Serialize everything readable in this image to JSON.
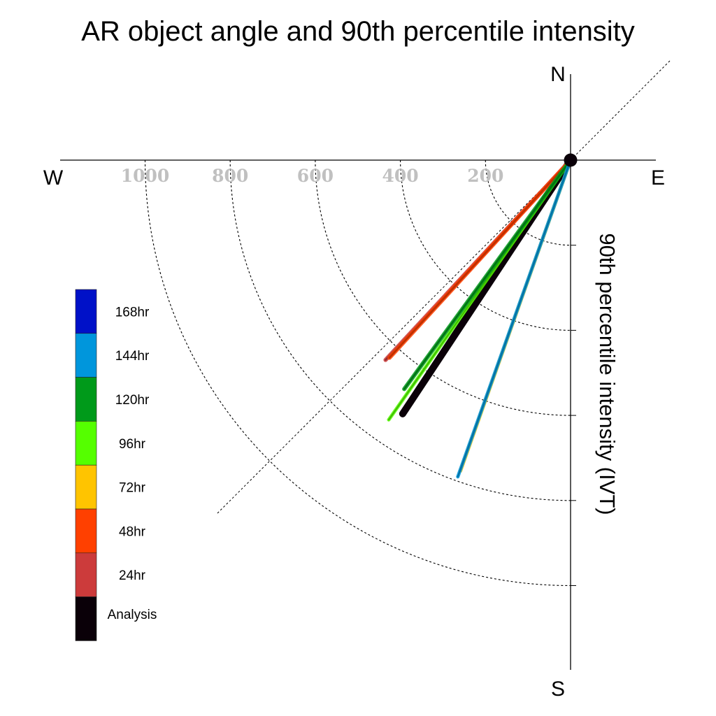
{
  "chart_data": {
    "type": "polar-vector",
    "title": "AR object angle and 90th percentile intensity",
    "ylabel": "90th percentile intensity (IVT)",
    "compass": {
      "north": "N",
      "south": "S",
      "east": "E",
      "west": "W"
    },
    "radial_ticks": [
      200,
      400,
      600,
      800,
      1000
    ],
    "radial_max": 1200,
    "angle_convention": "degrees clockwise from North",
    "grid": true,
    "legend_position": "bottom-left",
    "series": [
      {
        "name": "Analysis",
        "color": "#0a0008",
        "angle_deg": 213.5,
        "magnitude": 715,
        "weight": "heavy"
      },
      {
        "name": "24hr",
        "color": "#cc3b3b",
        "angle_deg": 222.8,
        "magnitude": 640,
        "weight": "medium"
      },
      {
        "name": "48hr",
        "color": "#ff4000",
        "angle_deg": 222.5,
        "magnitude": 630,
        "weight": "medium"
      },
      {
        "name": "72hr",
        "color": "#ffc400",
        "angle_deg": 199.5,
        "magnitude": 775,
        "weight": "light"
      },
      {
        "name": "96hr",
        "color": "#55ff00",
        "angle_deg": 215.0,
        "magnitude": 745,
        "weight": "light"
      },
      {
        "name": "120hr",
        "color": "#009a1a",
        "angle_deg": 216.0,
        "magnitude": 665,
        "weight": "medium"
      },
      {
        "name": "144hr",
        "color": "#0096dc",
        "angle_deg": 199.6,
        "magnitude": 790,
        "weight": "light"
      },
      {
        "name": "168hr",
        "color": "#0011c8",
        "angle_deg": null,
        "magnitude": null,
        "weight": "none"
      }
    ],
    "legend": [
      "168hr",
      "144hr",
      "120hr",
      "96hr",
      "72hr",
      "48hr",
      "24hr",
      "Analysis"
    ]
  }
}
